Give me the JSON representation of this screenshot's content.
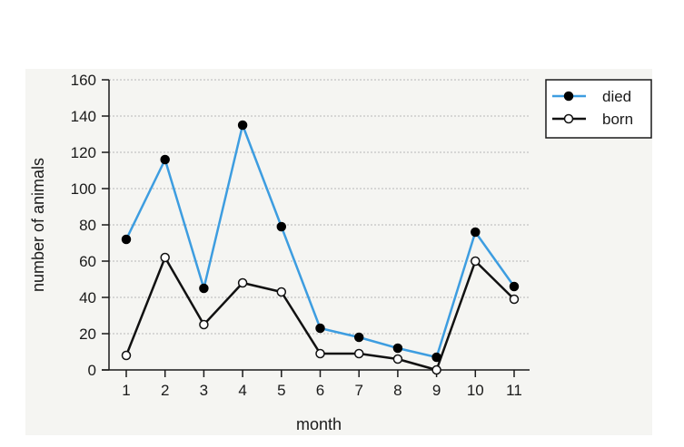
{
  "chart_data": {
    "type": "line",
    "title": "",
    "xlabel": "month",
    "ylabel": "number of animals",
    "categories": [
      "1",
      "2",
      "3",
      "4",
      "5",
      "6",
      "7",
      "8",
      "9",
      "10",
      "11"
    ],
    "x": [
      1,
      2,
      3,
      4,
      5,
      6,
      7,
      8,
      9,
      10,
      11
    ],
    "ylim": [
      0,
      160
    ],
    "yticks": [
      0,
      20,
      40,
      60,
      80,
      100,
      120,
      140,
      160
    ],
    "grid": true,
    "legend_position": "top-right",
    "series": [
      {
        "name": "died",
        "color": "#3d9de0",
        "marker": "filled-circle",
        "values": [
          72,
          116,
          45,
          135,
          79,
          23,
          18,
          12,
          7,
          76,
          46
        ]
      },
      {
        "name": "born",
        "color": "#111111",
        "marker": "open-circle",
        "values": [
          8,
          62,
          25,
          48,
          43,
          9,
          9,
          6,
          0,
          60,
          39
        ]
      }
    ]
  }
}
